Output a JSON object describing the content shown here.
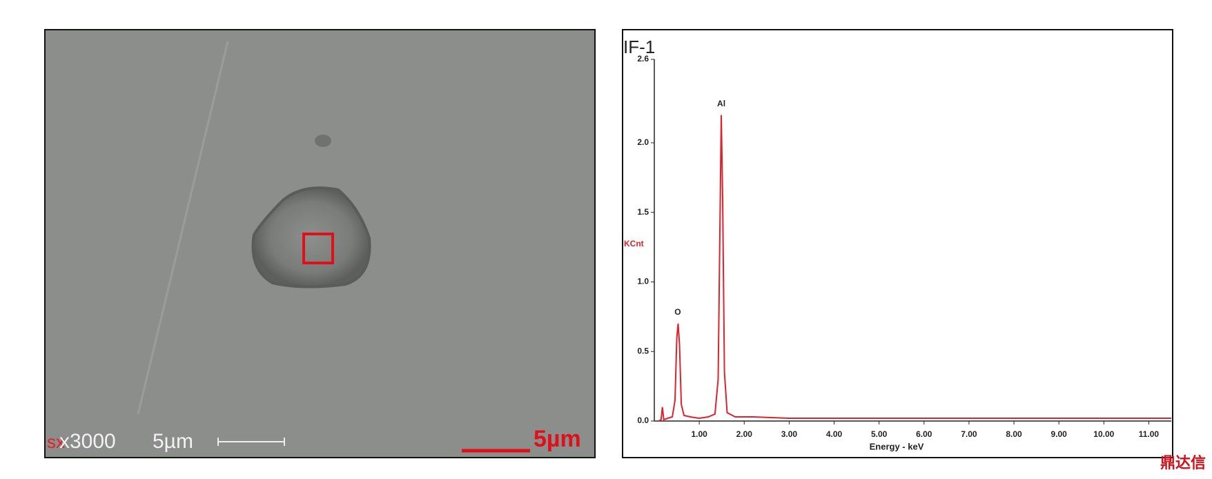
{
  "sem_image": {
    "overlay_label": "sx",
    "magnification": "x3000",
    "scale_label": "5µm",
    "marker_label": "5µm"
  },
  "chart_data": {
    "type": "line",
    "title": "IF-1",
    "y_label": "KCnt",
    "x_label": "Energy - keV",
    "xlim": [
      0,
      11.5
    ],
    "xticks": [
      {
        "value": 1,
        "label": "1.00"
      },
      {
        "value": 2,
        "label": "2.00"
      },
      {
        "value": 3,
        "label": "3.00"
      },
      {
        "value": 4,
        "label": "4.00"
      },
      {
        "value": 5,
        "label": "5.00"
      },
      {
        "value": 6,
        "label": "6.00"
      },
      {
        "value": 7,
        "label": "7.00"
      },
      {
        "value": 8,
        "label": "8.00"
      },
      {
        "value": 9,
        "label": "9.00"
      },
      {
        "value": 10,
        "label": "10.00"
      },
      {
        "value": 11,
        "label": "11.00"
      }
    ],
    "ylim": [
      0,
      2.6
    ],
    "yticks": [
      {
        "value": 0,
        "label": "0.0"
      },
      0.5,
      {
        "value": 1,
        "label": "1.0"
      },
      1.5,
      {
        "value": 2,
        "label": "2.0"
      },
      2.6
    ],
    "x": [
      0.1,
      0.15,
      0.18,
      0.21,
      0.3,
      0.4,
      0.46,
      0.5,
      0.53,
      0.56,
      0.6,
      0.66,
      0.8,
      1.0,
      1.2,
      1.35,
      1.42,
      1.46,
      1.49,
      1.52,
      1.56,
      1.62,
      1.8,
      2.2,
      3,
      4,
      5,
      6,
      7,
      8,
      9,
      10,
      11,
      11.5
    ],
    "series": [
      {
        "color": "#e0202a",
        "values": [
          0,
          0.01,
          0.1,
          0.01,
          0.02,
          0.03,
          0.15,
          0.6,
          0.7,
          0.55,
          0.12,
          0.04,
          0.03,
          0.02,
          0.03,
          0.05,
          0.3,
          1.4,
          2.2,
          1.6,
          0.35,
          0.06,
          0.03,
          0.03,
          0.02,
          0.02,
          0.02,
          0.02,
          0.02,
          0.02,
          0.02,
          0.02,
          0.02,
          0.02
        ]
      }
    ],
    "annotations": [
      {
        "text": "O",
        "x": 0.52,
        "y": 0.7
      },
      {
        "text": "Al",
        "x": 1.49,
        "y": 2.2
      }
    ]
  },
  "watermark": "鼎达信"
}
